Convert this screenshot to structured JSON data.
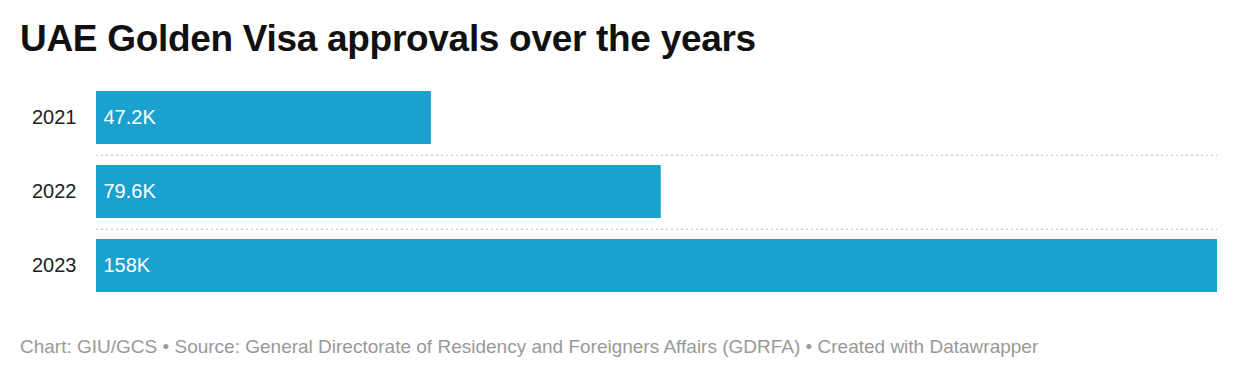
{
  "chart_data": {
    "type": "bar",
    "title": "UAE Golden Visa approvals over the years",
    "caption": "Chart: GIU/GCS • Source: General Directorate of Residency and Foreigners Affairs (GDRFA)  • Created with Datawrapper",
    "orientation": "horizontal",
    "categories": [
      "2021",
      "2022",
      "2023"
    ],
    "values": [
      47.2,
      79.6,
      158
    ],
    "value_labels": [
      "47.2K",
      "79.6K",
      "158K"
    ],
    "data_labels": true,
    "color": "#1ba1cf",
    "xlim": [
      0,
      158
    ],
    "tick_labels": "y"
  }
}
